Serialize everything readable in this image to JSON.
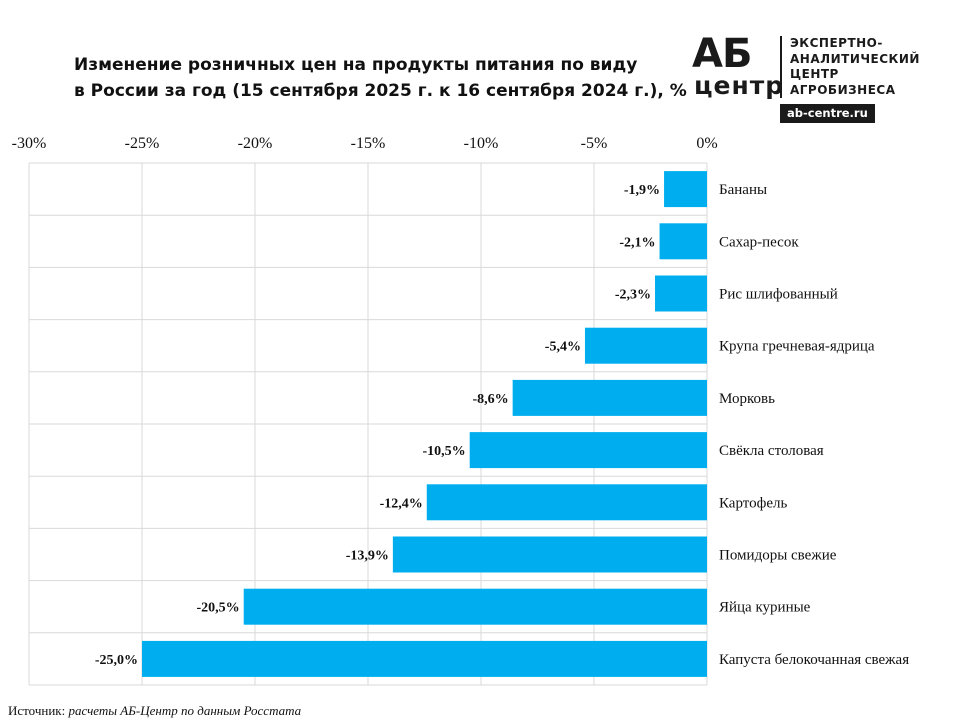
{
  "title": {
    "line1": "Изменение розничных цен на продукты питания по виду",
    "line2": "в России за год (15 сентября 2025 г. к 16 сентября 2024 г.), %"
  },
  "logo": {
    "ab": "АБ",
    "centr": "центр",
    "desc_line1": "ЭКСПЕРТНО-",
    "desc_line2": "АНАЛИТИЧЕСКИЙ",
    "desc_line3": "ЦЕНТР",
    "desc_line4": "АГРОБИЗНЕСА",
    "url": "ab-centre.ru"
  },
  "source": {
    "label": "Источник:",
    "text": "расчеты АБ-Центр по данным Росстата"
  },
  "colors": {
    "bar": "#00AEEF",
    "grid": "#D9D9D9",
    "text": "#111111"
  },
  "chart_data": {
    "type": "bar",
    "orientation": "horizontal",
    "title": "Изменение розничных цен на продукты питания по виду в России за год (15 сентября 2025 г. к 16 сентября 2024 г.), %",
    "xlabel": "",
    "ylabel": "",
    "xlim": [
      -30,
      0
    ],
    "tick_values": [
      -30,
      -25,
      -20,
      -15,
      -10,
      -5,
      0
    ],
    "tick_labels": [
      "-30%",
      "-25%",
      "-20%",
      "-15%",
      "-10%",
      "-5%",
      "0%"
    ],
    "categories": [
      "Бананы",
      "Сахар-песок",
      "Рис шлифованный",
      "Крупа гречневая-ядрица",
      "Морковь",
      "Свёкла столовая",
      "Картофель",
      "Помидоры свежие",
      "Яйца куриные",
      "Капуста белокочанная свежая"
    ],
    "values": [
      -1.9,
      -2.1,
      -2.3,
      -5.4,
      -8.6,
      -10.5,
      -12.4,
      -13.9,
      -20.5,
      -25.0
    ],
    "value_labels": [
      "-1,9%",
      "-2,1%",
      "-2,3%",
      "-5,4%",
      "-8,6%",
      "-10,5%",
      "-12,4%",
      "-13,9%",
      "-20,5%",
      "-25,0%"
    ],
    "grid": true,
    "axis_position": "top",
    "category_labels_position": "right"
  }
}
